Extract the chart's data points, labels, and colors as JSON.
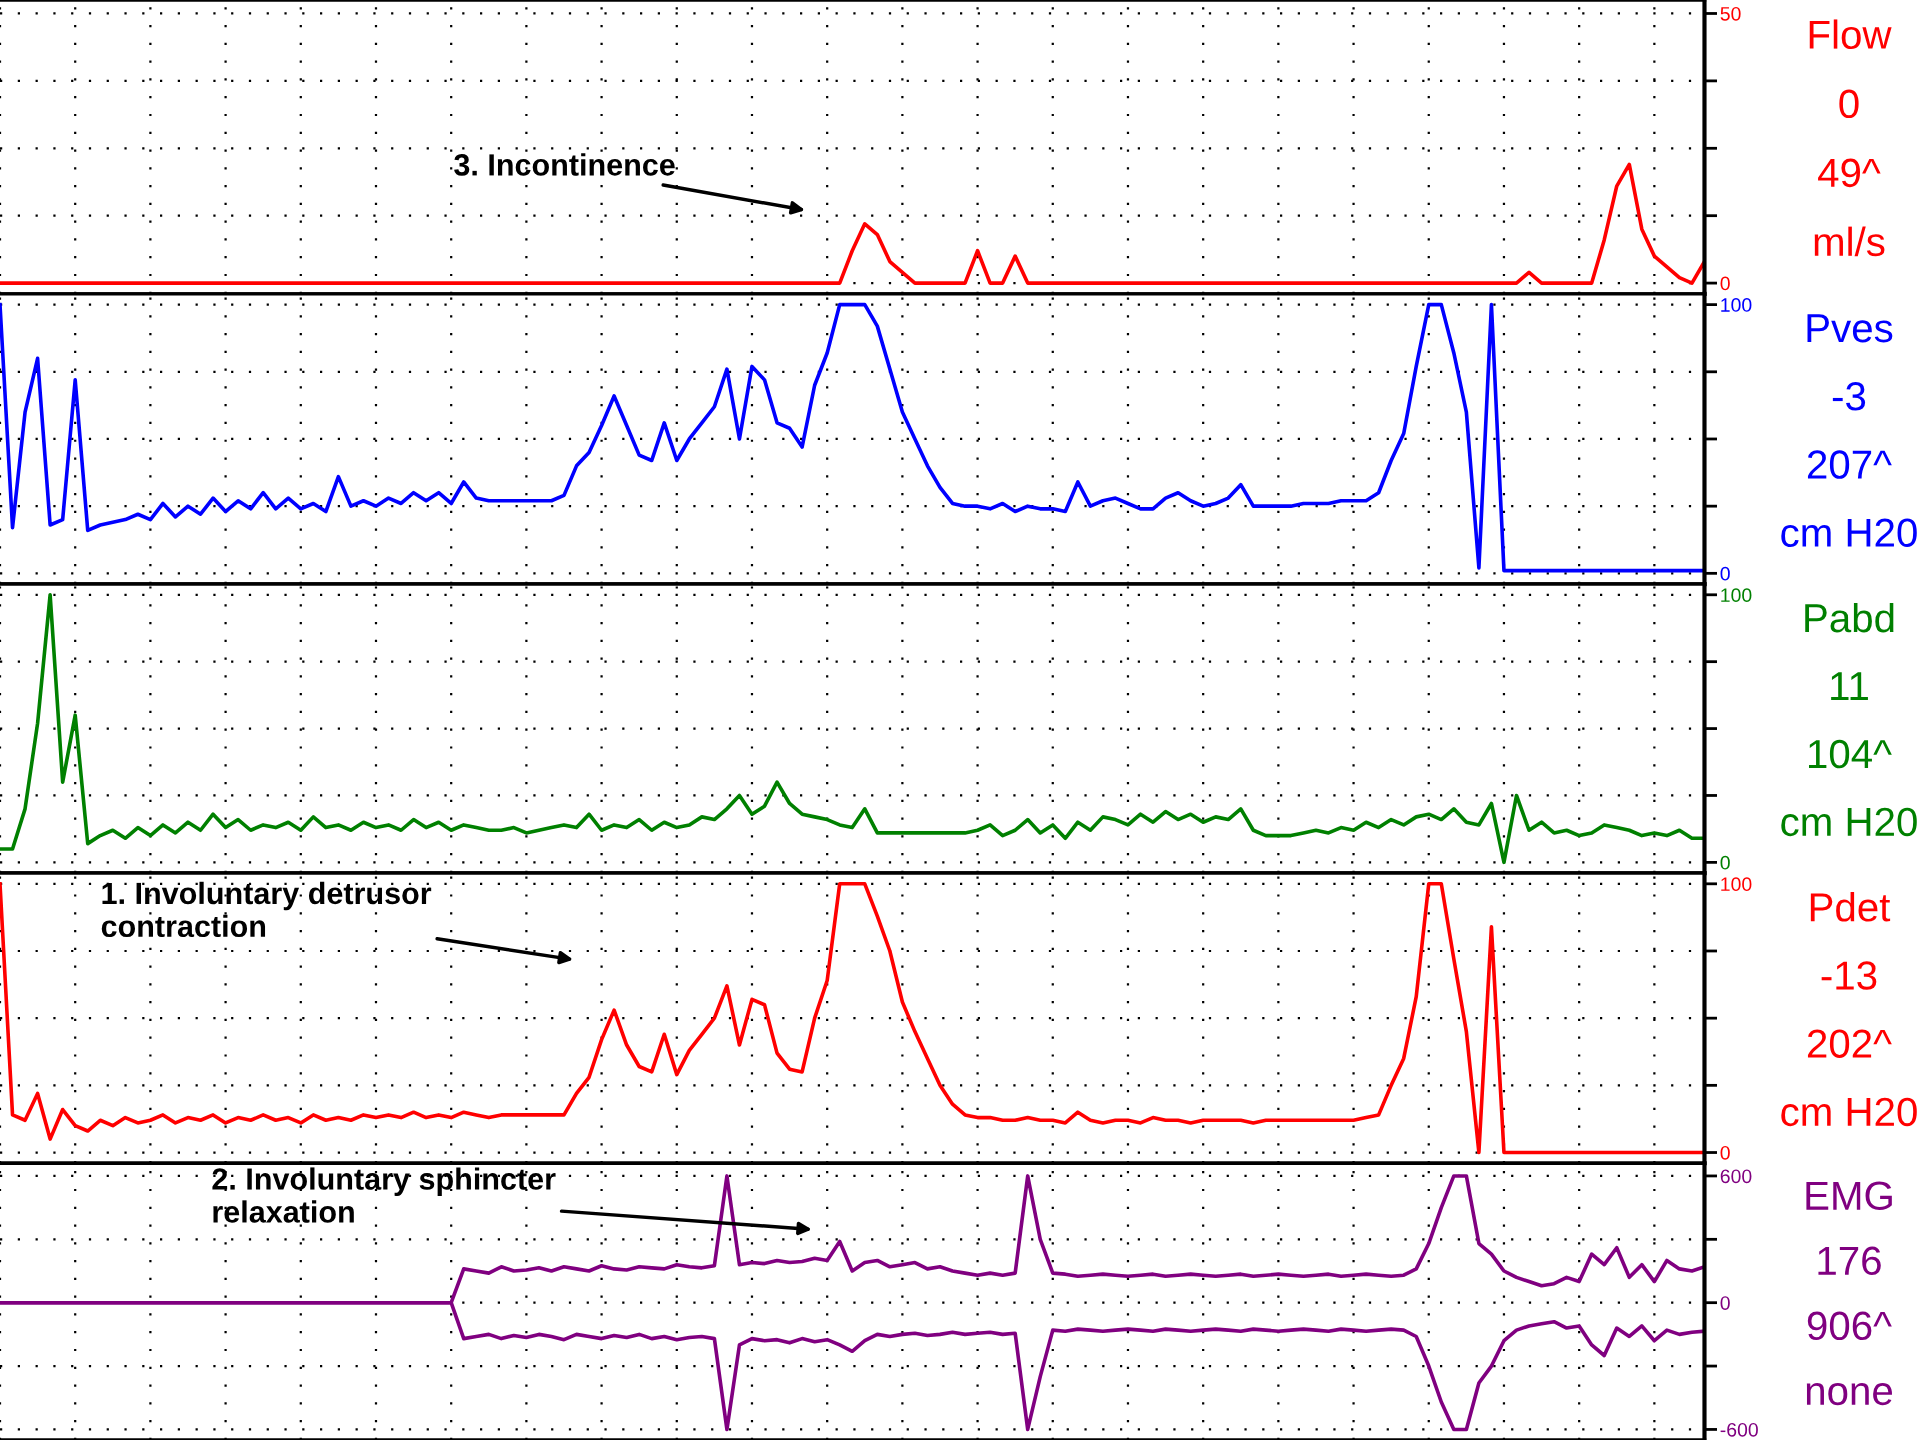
{
  "chart_data": [
    {
      "type": "line",
      "ylabel": "Flow",
      "ylim": [
        -2,
        52.5
      ],
      "yticks": [
        0,
        {
          "value": 12.5,
          "label": null
        },
        {
          "value": 25,
          "label": null
        },
        {
          "value": 37.5,
          "label": null
        },
        50
      ],
      "grid": true,
      "categories": [
        null,
        null,
        null,
        null,
        null,
        null,
        null,
        null,
        null,
        null,
        null,
        null,
        null,
        null,
        null,
        null,
        null,
        null,
        null,
        null,
        null,
        null,
        null,
        null,
        null,
        null,
        null,
        null,
        null,
        null,
        null,
        null,
        null,
        null,
        null,
        null,
        null,
        null,
        null,
        null,
        null,
        null,
        null,
        null,
        null,
        null,
        null,
        null,
        null,
        null,
        null,
        null,
        null,
        null,
        null,
        null,
        null,
        null,
        null,
        null,
        null,
        null,
        null,
        null,
        null,
        null,
        null,
        null,
        null,
        null,
        null,
        null,
        null,
        null,
        null,
        null,
        null,
        null,
        null,
        null,
        null,
        null,
        null,
        null,
        null,
        null,
        null,
        null,
        null,
        null,
        null,
        null,
        null,
        null,
        null,
        null,
        null,
        null,
        null,
        null,
        null,
        null,
        null,
        null,
        null,
        null,
        null,
        null,
        null,
        null,
        null,
        null,
        null,
        null,
        null,
        null,
        null,
        null,
        null,
        null,
        null,
        null,
        null,
        null,
        null,
        null,
        null,
        null,
        null,
        null,
        null,
        null,
        null,
        null,
        null,
        null,
        null
      ],
      "series": [
        {
          "color": "#ff0000",
          "values": [
            0,
            0,
            0,
            0,
            0,
            0,
            0,
            0,
            0,
            0,
            0,
            0,
            0,
            0,
            0,
            0,
            0,
            0,
            0,
            0,
            0,
            0,
            0,
            0,
            0,
            0,
            0,
            0,
            0,
            0,
            0,
            0,
            0,
            0,
            0,
            0,
            0,
            0,
            0,
            0,
            0,
            0,
            0,
            0,
            0,
            0,
            0,
            0,
            0,
            0,
            0,
            0,
            0,
            0,
            0,
            0,
            0,
            0,
            0,
            0,
            0,
            0,
            0,
            0,
            0,
            0,
            0,
            0,
            6,
            11,
            9,
            4,
            2,
            0,
            0,
            0,
            0,
            0,
            6,
            0,
            0,
            5,
            0,
            0,
            0,
            0,
            0,
            0,
            0,
            0,
            0,
            0,
            0,
            0,
            0,
            0,
            0,
            0,
            0,
            0,
            0,
            0,
            0,
            0,
            0,
            0,
            0,
            0,
            0,
            0,
            0,
            0,
            0,
            0,
            0,
            0,
            0,
            0,
            0,
            0,
            0,
            0,
            2,
            0,
            0,
            0,
            0,
            0,
            8,
            18,
            22,
            10,
            5,
            3,
            1,
            0,
            4
          ]
        }
      ],
      "annotations": [
        "0",
        "49^",
        "ml/s",
        "3. Incontinence"
      ]
    },
    {
      "type": "line",
      "ylabel": "Pves",
      "ylim": [
        -4,
        104
      ],
      "yticks": [
        0,
        {
          "value": 25,
          "label": null
        },
        {
          "value": 50,
          "label": null
        },
        {
          "value": 75,
          "label": null
        },
        100
      ],
      "grid": true,
      "categories": [
        null,
        null,
        null,
        null,
        null,
        null,
        null,
        null,
        null,
        null,
        null,
        null,
        null,
        null,
        null,
        null,
        null,
        null,
        null,
        null,
        null,
        null,
        null,
        null,
        null,
        null,
        null,
        null,
        null,
        null,
        null,
        null,
        null,
        null,
        null,
        null,
        null,
        null,
        null,
        null,
        null,
        null,
        null,
        null,
        null,
        null,
        null,
        null,
        null,
        null,
        null,
        null,
        null,
        null,
        null,
        null,
        null,
        null,
        null,
        null,
        null,
        null,
        null,
        null,
        null,
        null,
        null,
        null,
        null,
        null,
        null,
        null,
        null,
        null,
        null,
        null,
        null,
        null,
        null,
        null,
        null,
        null,
        null,
        null,
        null,
        null,
        null,
        null,
        null,
        null,
        null,
        null,
        null,
        null,
        null,
        null,
        null,
        null,
        null,
        null,
        null,
        null,
        null,
        null,
        null,
        null,
        null,
        null,
        null,
        null,
        null,
        null,
        null,
        null,
        null,
        null,
        null,
        null,
        null,
        null,
        null,
        null,
        null,
        null,
        null,
        null,
        null,
        null,
        null,
        null,
        null,
        null,
        null,
        null,
        null,
        null,
        null
      ],
      "series": [
        {
          "color": "#0000ff",
          "values": [
            100,
            17,
            60,
            80,
            18,
            20,
            72,
            16,
            18,
            19,
            20,
            22,
            20,
            26,
            21,
            25,
            22,
            28,
            23,
            27,
            24,
            30,
            24,
            28,
            24,
            26,
            23,
            36,
            25,
            27,
            25,
            28,
            26,
            30,
            27,
            30,
            26,
            34,
            28,
            27,
            27,
            27,
            27,
            27,
            27,
            29,
            40,
            45,
            55,
            66,
            55,
            44,
            42,
            56,
            42,
            50,
            56,
            62,
            76,
            50,
            77,
            72,
            56,
            54,
            47,
            70,
            82,
            100,
            100,
            100,
            92,
            76,
            60,
            50,
            40,
            32,
            26,
            25,
            25,
            24,
            26,
            23,
            25,
            24,
            24,
            23,
            34,
            25,
            27,
            28,
            26,
            24,
            24,
            28,
            30,
            27,
            25,
            26,
            28,
            33,
            25,
            25,
            25,
            25,
            26,
            26,
            26,
            27,
            27,
            27,
            30,
            42,
            52,
            77,
            100,
            100,
            82,
            60,
            2,
            100,
            1,
            1,
            1,
            1,
            1,
            1,
            1,
            1,
            1,
            1,
            1,
            1,
            1,
            1,
            1,
            1,
            1
          ]
        }
      ],
      "annotations": [
        "-3",
        "207^",
        "cm H20"
      ]
    },
    {
      "type": "line",
      "ylabel": "Pabd",
      "ylim": [
        -4,
        104
      ],
      "yticks": [
        0,
        {
          "value": 25,
          "label": null
        },
        {
          "value": 50,
          "label": null
        },
        {
          "value": 75,
          "label": null
        },
        100
      ],
      "grid": true,
      "categories": [
        null,
        null,
        null,
        null,
        null,
        null,
        null,
        null,
        null,
        null,
        null,
        null,
        null,
        null,
        null,
        null,
        null,
        null,
        null,
        null,
        null,
        null,
        null,
        null,
        null,
        null,
        null,
        null,
        null,
        null,
        null,
        null,
        null,
        null,
        null,
        null,
        null,
        null,
        null,
        null,
        null,
        null,
        null,
        null,
        null,
        null,
        null,
        null,
        null,
        null,
        null,
        null,
        null,
        null,
        null,
        null,
        null,
        null,
        null,
        null,
        null,
        null,
        null,
        null,
        null,
        null,
        null,
        null,
        null,
        null,
        null,
        null,
        null,
        null,
        null,
        null,
        null,
        null,
        null,
        null,
        null,
        null,
        null,
        null,
        null,
        null,
        null,
        null,
        null,
        null,
        null,
        null,
        null,
        null,
        null,
        null,
        null,
        null,
        null,
        null,
        null,
        null,
        null,
        null,
        null,
        null,
        null,
        null,
        null,
        null,
        null,
        null,
        null,
        null,
        null,
        null,
        null,
        null,
        null,
        null,
        null,
        null,
        null,
        null,
        null,
        null,
        null,
        null,
        null,
        null,
        null,
        null,
        null,
        null,
        null,
        null,
        null
      ],
      "series": [
        {
          "color": "#008000",
          "values": [
            5,
            5,
            20,
            52,
            100,
            30,
            55,
            7,
            10,
            12,
            9,
            13,
            10,
            14,
            11,
            15,
            12,
            18,
            13,
            16,
            12,
            14,
            13,
            15,
            12,
            17,
            13,
            14,
            12,
            15,
            13,
            14,
            12,
            16,
            13,
            15,
            12,
            14,
            13,
            12,
            12,
            13,
            11,
            12,
            13,
            14,
            13,
            18,
            12,
            14,
            13,
            16,
            12,
            15,
            13,
            14,
            17,
            16,
            20,
            25,
            18,
            21,
            30,
            22,
            18,
            17,
            16,
            14,
            13,
            20,
            11,
            11,
            11,
            11,
            11,
            11,
            11,
            11,
            12,
            14,
            10,
            12,
            16,
            11,
            14,
            9,
            15,
            12,
            17,
            16,
            14,
            18,
            15,
            19,
            16,
            18,
            15,
            17,
            16,
            20,
            12,
            10,
            10,
            10,
            11,
            12,
            11,
            13,
            12,
            15,
            13,
            16,
            14,
            17,
            18,
            16,
            20,
            15,
            14,
            22,
            0,
            25,
            12,
            15,
            11,
            12,
            10,
            11,
            14,
            13,
            12,
            10,
            11,
            10,
            12,
            9,
            9
          ]
        }
      ],
      "annotations": [
        "11",
        "104^",
        "cm H20"
      ]
    },
    {
      "type": "line",
      "ylabel": "Pdet",
      "ylim": [
        -4,
        104
      ],
      "yticks": [
        0,
        {
          "value": 25,
          "label": null
        },
        {
          "value": 50,
          "label": null
        },
        {
          "value": 75,
          "label": null
        },
        100
      ],
      "grid": true,
      "categories": [
        null,
        null,
        null,
        null,
        null,
        null,
        null,
        null,
        null,
        null,
        null,
        null,
        null,
        null,
        null,
        null,
        null,
        null,
        null,
        null,
        null,
        null,
        null,
        null,
        null,
        null,
        null,
        null,
        null,
        null,
        null,
        null,
        null,
        null,
        null,
        null,
        null,
        null,
        null,
        null,
        null,
        null,
        null,
        null,
        null,
        null,
        null,
        null,
        null,
        null,
        null,
        null,
        null,
        null,
        null,
        null,
        null,
        null,
        null,
        null,
        null,
        null,
        null,
        null,
        null,
        null,
        null,
        null,
        null,
        null,
        null,
        null,
        null,
        null,
        null,
        null,
        null,
        null,
        null,
        null,
        null,
        null,
        null,
        null,
        null,
        null,
        null,
        null,
        null,
        null,
        null,
        null,
        null,
        null,
        null,
        null,
        null,
        null,
        null,
        null,
        null,
        null,
        null,
        null,
        null,
        null,
        null,
        null,
        null,
        null,
        null,
        null,
        null,
        null,
        null,
        null,
        null,
        null,
        null,
        null,
        null,
        null,
        null,
        null,
        null,
        null,
        null,
        null,
        null,
        null,
        null,
        null,
        null,
        null,
        null,
        null,
        null
      ],
      "series": [
        {
          "color": "#ff0000",
          "values": [
            100,
            14,
            12,
            22,
            5,
            16,
            10,
            8,
            12,
            10,
            13,
            11,
            12,
            14,
            11,
            13,
            12,
            14,
            11,
            13,
            12,
            14,
            12,
            13,
            11,
            14,
            12,
            13,
            12,
            14,
            13,
            14,
            13,
            15,
            13,
            14,
            13,
            15,
            14,
            13,
            14,
            14,
            14,
            14,
            14,
            14,
            22,
            28,
            42,
            53,
            40,
            32,
            30,
            44,
            29,
            38,
            44,
            50,
            62,
            40,
            57,
            55,
            37,
            31,
            30,
            50,
            64,
            100,
            100,
            100,
            88,
            75,
            56,
            45,
            35,
            25,
            18,
            14,
            13,
            13,
            12,
            12,
            13,
            12,
            12,
            11,
            15,
            12,
            11,
            12,
            12,
            11,
            13,
            12,
            12,
            11,
            12,
            12,
            12,
            12,
            11,
            12,
            12,
            12,
            12,
            12,
            12,
            12,
            12,
            13,
            14,
            25,
            35,
            58,
            100,
            100,
            72,
            45,
            0,
            84,
            0,
            0,
            0,
            0,
            0,
            0,
            0,
            0,
            0,
            0,
            0,
            0,
            0,
            0,
            0,
            0,
            0
          ]
        }
      ],
      "annotations": [
        "-13",
        "202^",
        "cm H20",
        "1. Involuntary detrusor\ncontraction"
      ]
    },
    {
      "type": "line",
      "ylabel": "EMG",
      "ylim": [
        -650,
        660
      ],
      "yticks": [
        600,
        {
          "value": 300,
          "label": null
        },
        0,
        {
          "value": -300,
          "label": null
        },
        -600
      ],
      "grid": true,
      "categories": [
        null,
        null,
        null,
        null,
        null,
        null,
        null,
        null,
        null,
        null,
        null,
        null,
        null,
        null,
        null,
        null,
        null,
        null,
        null,
        null,
        null,
        null,
        null,
        null,
        null,
        null,
        null,
        null,
        null,
        null,
        null,
        null,
        null,
        null,
        null,
        null,
        null,
        null,
        null,
        null,
        null,
        null,
        null,
        null,
        null,
        null,
        null,
        null,
        null,
        null,
        null,
        null,
        null,
        null,
        null,
        null,
        null,
        null,
        null,
        null,
        null,
        null,
        null,
        null,
        null,
        null,
        null,
        null,
        null,
        null,
        null,
        null,
        null,
        null,
        null,
        null,
        null,
        null,
        null,
        null,
        null,
        null,
        null,
        null,
        null,
        null,
        null,
        null,
        null,
        null,
        null,
        null,
        null,
        null,
        null,
        null,
        null,
        null,
        null,
        null,
        null,
        null,
        null,
        null,
        null,
        null,
        null,
        null,
        null,
        null,
        null,
        null,
        null,
        null,
        null,
        null,
        null,
        null,
        null,
        null,
        null,
        null,
        null,
        null,
        null,
        null,
        null,
        null,
        null,
        null,
        null,
        null,
        null,
        null,
        null,
        null,
        null
      ],
      "series": [
        {
          "color": "#800080",
          "values": [
            0,
            0,
            0,
            0,
            0,
            0,
            0,
            0,
            0,
            0,
            0,
            0,
            0,
            0,
            0,
            0,
            0,
            0,
            0,
            0,
            0,
            0,
            0,
            0,
            0,
            0,
            0,
            0,
            0,
            0,
            0,
            0,
            0,
            0,
            0,
            0,
            0,
            160,
            150,
            140,
            170,
            150,
            155,
            165,
            150,
            170,
            160,
            150,
            175,
            160,
            155,
            170,
            165,
            160,
            180,
            170,
            165,
            175,
            600,
            180,
            190,
            185,
            200,
            190,
            195,
            210,
            200,
            290,
            150,
            190,
            200,
            170,
            180,
            190,
            160,
            170,
            150,
            140,
            130,
            140,
            130,
            140,
            600,
            300,
            140,
            135,
            125,
            130,
            135,
            130,
            125,
            130,
            135,
            125,
            130,
            135,
            130,
            125,
            130,
            135,
            125,
            130,
            135,
            130,
            125,
            130,
            135,
            125,
            130,
            135,
            130,
            125,
            130,
            160,
            280,
            450,
            600,
            600,
            280,
            230,
            150,
            120,
            100,
            80,
            90,
            120,
            100,
            230,
            180,
            260,
            120,
            180,
            100,
            200,
            160,
            150,
            170
          ]
        },
        {
          "color": "#800080",
          "values": [
            0,
            0,
            0,
            0,
            0,
            0,
            0,
            0,
            0,
            0,
            0,
            0,
            0,
            0,
            0,
            0,
            0,
            0,
            0,
            0,
            0,
            0,
            0,
            0,
            0,
            0,
            0,
            0,
            0,
            0,
            0,
            0,
            0,
            0,
            0,
            0,
            0,
            -170,
            -160,
            -150,
            -170,
            -155,
            -165,
            -150,
            -160,
            -175,
            -150,
            -160,
            -170,
            -155,
            -165,
            -150,
            -170,
            -160,
            -175,
            -165,
            -160,
            -170,
            -600,
            -200,
            -170,
            -180,
            -175,
            -190,
            -170,
            -185,
            -175,
            -200,
            -230,
            -180,
            -150,
            -160,
            -150,
            -145,
            -155,
            -150,
            -140,
            -150,
            -145,
            -140,
            -150,
            -145,
            -600,
            -350,
            -130,
            -135,
            -125,
            -130,
            -135,
            -130,
            -125,
            -130,
            -135,
            -125,
            -130,
            -135,
            -130,
            -125,
            -130,
            -135,
            -125,
            -130,
            -135,
            -130,
            -125,
            -130,
            -135,
            -125,
            -130,
            -135,
            -130,
            -125,
            -130,
            -160,
            -300,
            -470,
            -600,
            -600,
            -380,
            -300,
            -180,
            -130,
            -110,
            -100,
            -90,
            -120,
            -110,
            -200,
            -250,
            -120,
            -160,
            -110,
            -180,
            -130,
            -150,
            -140,
            -135
          ]
        }
      ],
      "annotations": [
        "176",
        "906^",
        "none",
        "2. Involuntary sphincter\nrelaxation"
      ]
    }
  ]
}
